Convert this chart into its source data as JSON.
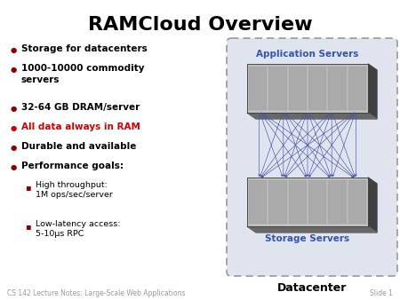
{
  "title": "RAMCloud Overview",
  "title_fontsize": 16,
  "title_fontweight": "bold",
  "background_color": "#ffffff",
  "bullet_color": "#8B0000",
  "text_color": "#000000",
  "highlight_color": "#CC0000",
  "bullets": [
    {
      "text": "Storage for datacenters",
      "highlight": false,
      "indent": 0
    },
    {
      "text": "1000-10000 commodity\nservers",
      "highlight": false,
      "indent": 0
    },
    {
      "text": "32-64 GB DRAM/server",
      "highlight": false,
      "indent": 0
    },
    {
      "text": "All data always in RAM",
      "highlight": true,
      "indent": 0
    },
    {
      "text": "Durable and available",
      "highlight": false,
      "indent": 0
    },
    {
      "text": "Performance goals:",
      "highlight": false,
      "indent": 0
    },
    {
      "text": "High throughput:\n1M ops/sec/server",
      "highlight": false,
      "indent": 1
    },
    {
      "text": "Low-latency access:\n5-10μs RPC",
      "highlight": false,
      "indent": 1
    }
  ],
  "datacenter_box_color": "#e0e4ee",
  "datacenter_box_edge": "#999999",
  "server_face_color": "#c0c0c0",
  "server_shadow_color": "#404040",
  "server_side_color": "#686868",
  "arrow_color": "#4455aa",
  "app_label": "Application Servers",
  "storage_label": "Storage Servers",
  "datacenter_label": "Datacenter",
  "footer_left": "CS 142 Lecture Notes: Large-Scale Web Applications",
  "footer_right": "Slide 1",
  "footer_color": "#999999",
  "footer_fontsize": 5.5
}
